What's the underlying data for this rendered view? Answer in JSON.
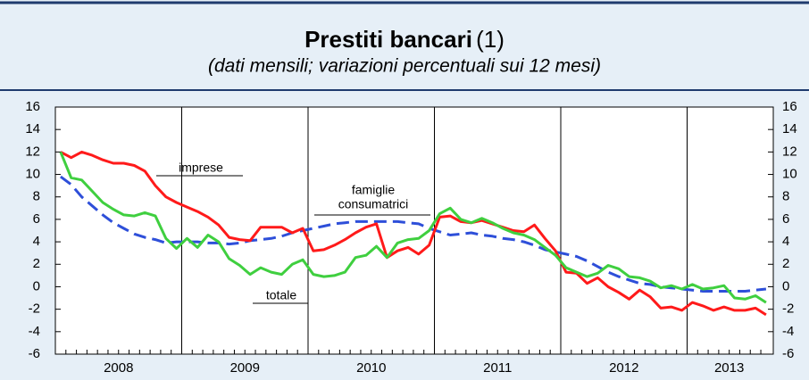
{
  "chart_data": {
    "type": "line",
    "title": "Prestiti bancari",
    "title_note": "(1)",
    "subtitle": "(dati mensili; variazioni percentuali sui 12 mesi)",
    "categories": [
      null,
      null,
      null,
      null,
      null,
      null,
      "2008",
      null,
      null,
      null,
      null,
      null,
      null,
      null,
      null,
      null,
      null,
      null,
      "2009",
      null,
      null,
      null,
      null,
      null,
      null,
      null,
      null,
      null,
      null,
      null,
      "2010",
      null,
      null,
      null,
      null,
      null,
      null,
      null,
      null,
      null,
      null,
      null,
      "2011",
      null,
      null,
      null,
      null,
      null,
      null,
      null,
      null,
      null,
      null,
      null,
      "2012",
      null,
      null,
      null,
      null,
      null,
      null,
      null,
      null,
      null,
      "2013",
      null,
      null,
      null
    ],
    "ylim": [
      -6,
      16
    ],
    "yticks": [
      -6,
      -4,
      -2,
      0,
      2,
      4,
      6,
      8,
      10,
      12,
      14,
      16
    ],
    "series": [
      {
        "color": "#2e4fd9",
        "dash": true,
        "values": [
          9.8,
          9.1,
          8.0,
          7.2,
          6.4,
          5.7,
          5.2,
          4.7,
          4.4,
          4.2,
          3.9,
          4.0,
          4.0,
          4.0,
          3.9,
          3.9,
          3.8,
          3.9,
          4.1,
          4.2,
          4.3,
          4.5,
          4.8,
          5.0,
          5.2,
          5.4,
          5.6,
          5.7,
          5.8,
          5.8,
          5.8,
          5.8,
          5.8,
          5.7,
          5.6,
          5.2,
          4.9,
          4.6,
          4.7,
          4.8,
          4.6,
          4.5,
          4.3,
          4.2,
          4.0,
          3.7,
          3.3,
          3.1,
          2.9,
          2.7,
          2.3,
          1.8,
          1.3,
          0.9,
          0.6,
          0.3,
          0.2,
          0.0,
          -0.1,
          -0.2,
          -0.3,
          -0.4,
          -0.4,
          -0.4,
          -0.4,
          -0.4,
          -0.3,
          -0.2
        ]
      },
      {
        "color": "#ff1a1a",
        "dash": false,
        "values": [
          12,
          11.5,
          12,
          11.7,
          11.3,
          11,
          11,
          10.8,
          10.3,
          9,
          8,
          7.5,
          7.1,
          6.7,
          6.2,
          5.5,
          4.4,
          4.2,
          4.1,
          5.3,
          5.3,
          5.3,
          4.8,
          5.2,
          3.2,
          3.3,
          3.7,
          4.2,
          4.8,
          5.3,
          5.6,
          2.6,
          3.2,
          3.5,
          2.9,
          3.7,
          6.2,
          6.3,
          5.8,
          5.7,
          5.9,
          5.6,
          5.3,
          5.0,
          4.9,
          5.5,
          4.3,
          3.2,
          1.3,
          1.2,
          0.3,
          0.8,
          0,
          -0.5,
          -1.1,
          -0.3,
          -0.9,
          -1.9,
          -1.8,
          -2.1,
          -1.4,
          -1.7,
          -2.1,
          -1.8,
          -2.1,
          -2.1,
          -1.9,
          -2.5
        ]
      },
      {
        "color": "#3fcf3f",
        "dash": false,
        "values": [
          12,
          9.7,
          9.5,
          8.5,
          7.5,
          6.9,
          6.4,
          6.3,
          6.6,
          6.3,
          4.3,
          3.4,
          4.3,
          3.5,
          4.6,
          4.0,
          2.5,
          1.9,
          1.1,
          1.7,
          1.3,
          1.1,
          2.0,
          2.4,
          1.1,
          0.9,
          1.0,
          1.3,
          2.6,
          2.8,
          3.6,
          2.6,
          3.9,
          4.2,
          4.3,
          5.0,
          6.5,
          7.0,
          6.0,
          5.7,
          6.1,
          5.7,
          5.2,
          4.8,
          4.6,
          4.2,
          3.5,
          2.8,
          1.7,
          1.3,
          0.9,
          1.2,
          1.9,
          1.6,
          0.9,
          0.8,
          0.5,
          -0.1,
          0.1,
          -0.2,
          0.2,
          -0.2,
          -0.1,
          0.1,
          -1.0,
          -1.1,
          -0.8,
          -1.4
        ]
      }
    ],
    "annotations": [
      "imprese",
      "famiglie",
      "consumatrici",
      "totale"
    ]
  }
}
